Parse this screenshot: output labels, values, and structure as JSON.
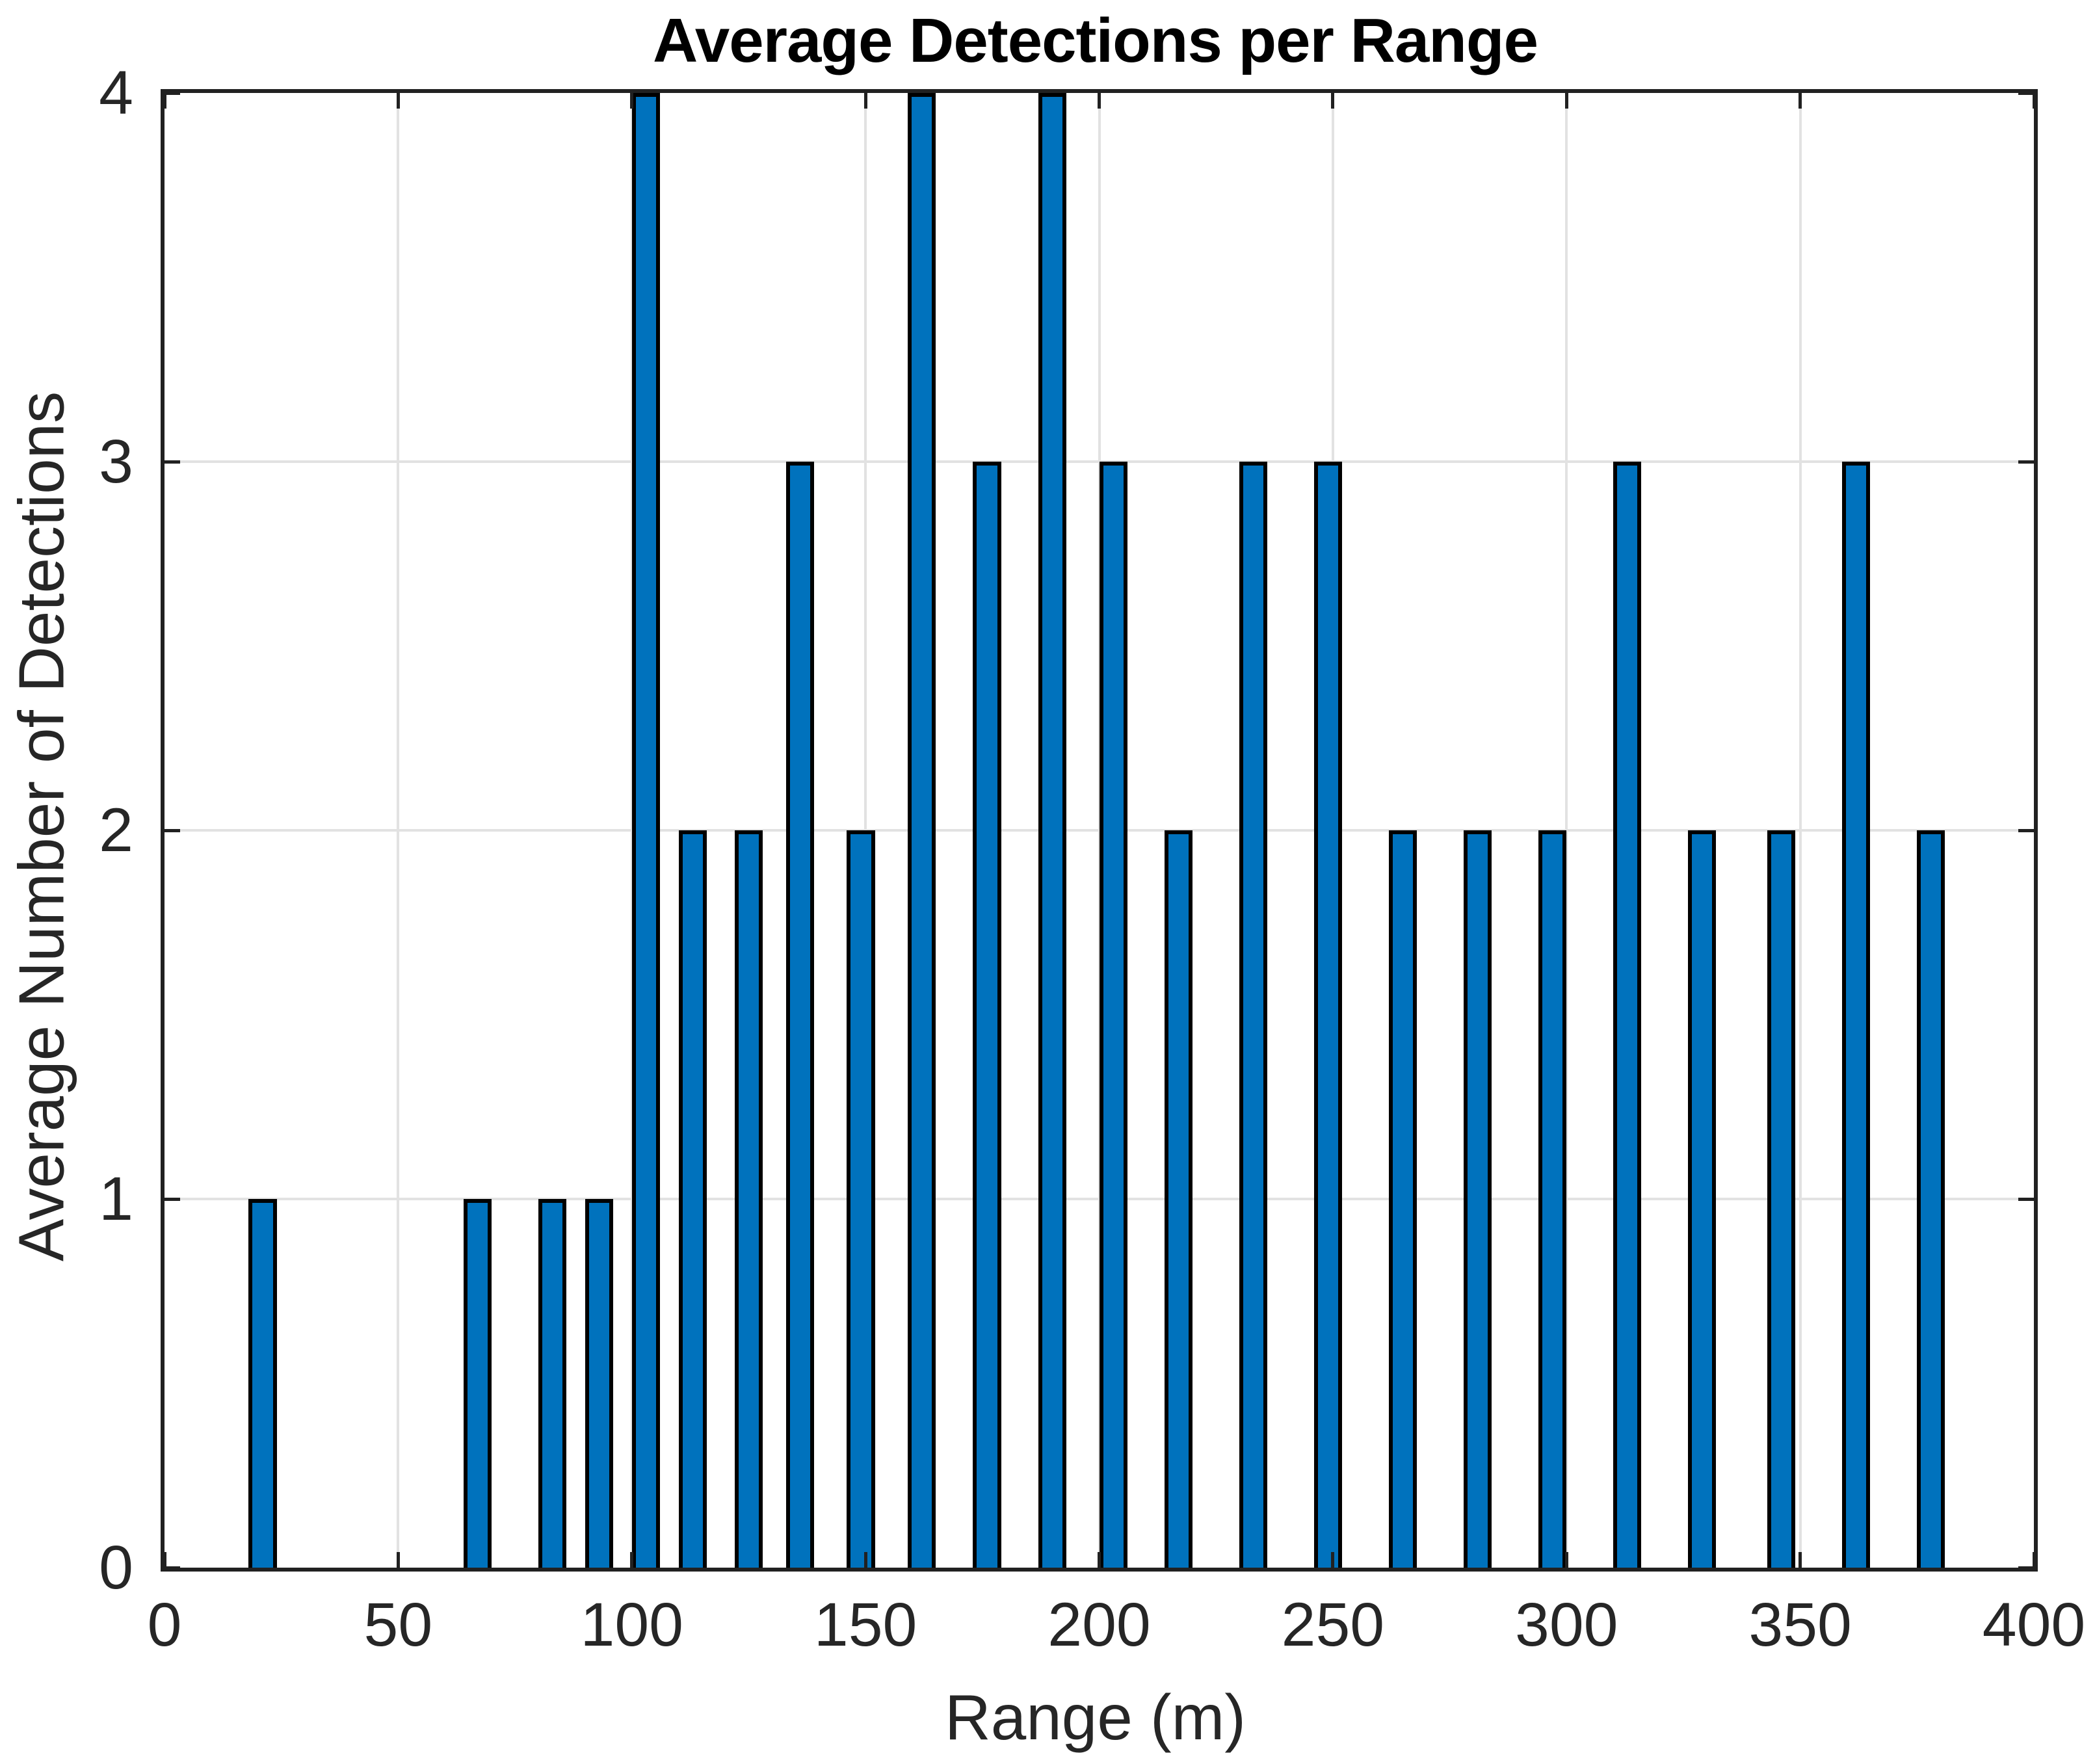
{
  "title": "Average Detections per Range",
  "axes": {
    "xlabel": "Range (m)",
    "ylabel": "Average Number of Detections",
    "x_ticks": [
      0,
      50,
      100,
      150,
      200,
      250,
      300,
      350,
      400
    ],
    "y_ticks": [
      0,
      1,
      2,
      3,
      4
    ]
  },
  "colors": {
    "bar_fill": "#0072BD",
    "bar_edge": "#000000",
    "axis_line": "#212121",
    "grid_line": "#e2e2e2",
    "tick_label": "#262626",
    "title_color": "#000000",
    "background": "#ffffff"
  },
  "chart_data": {
    "type": "bar",
    "title": "Average Detections per Range",
    "xlabel": "Range (m)",
    "ylabel": "Average Number of Detections",
    "xlim": [
      0,
      400
    ],
    "ylim": [
      0,
      4
    ],
    "grid": true,
    "legend": "none",
    "bar_width_data_units": 6,
    "x": [
      21,
      67,
      83,
      93,
      103,
      113,
      125,
      136,
      149,
      162,
      176,
      190,
      203,
      217,
      233,
      249,
      265,
      281,
      297,
      313,
      329,
      346,
      362,
      378
    ],
    "values": [
      1,
      1,
      1,
      1,
      4,
      2,
      2,
      3,
      2,
      4,
      3,
      4,
      3,
      2,
      3,
      3,
      2,
      2,
      2,
      3,
      2,
      2,
      3,
      2
    ]
  }
}
